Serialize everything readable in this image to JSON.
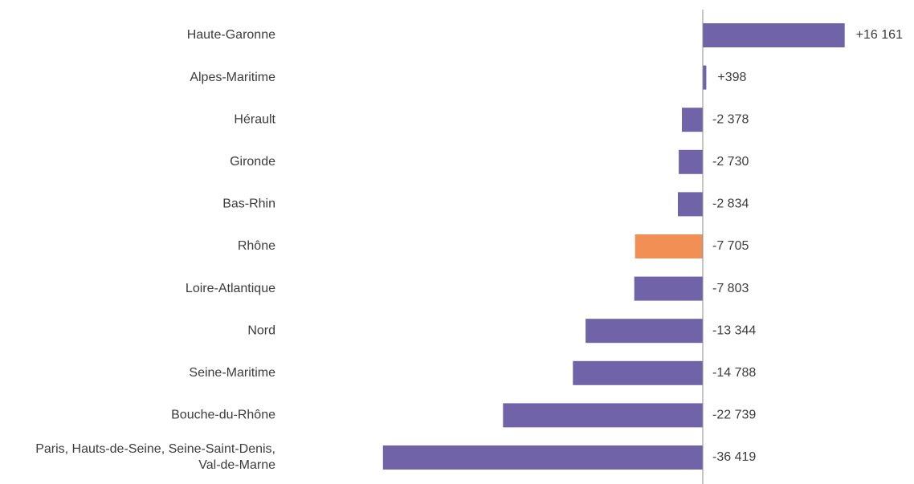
{
  "chart_data": {
    "type": "bar",
    "orientation": "horizontal",
    "title": "",
    "xlabel": "",
    "ylabel": "",
    "grid": false,
    "categories": [
      [
        "Haute-Garonne"
      ],
      [
        "Alpes-Maritime"
      ],
      [
        "Hérault"
      ],
      [
        "Gironde"
      ],
      [
        "Bas-Rhin"
      ],
      [
        "Rhône"
      ],
      [
        "Loire-Atlantique"
      ],
      [
        "Nord"
      ],
      [
        "Seine-Maritime"
      ],
      [
        "Bouche-du-Rhône"
      ],
      [
        "Paris, Hauts-de-Seine, Seine-Saint-Denis,",
        "Val-de-Marne"
      ]
    ],
    "values": [
      16161,
      398,
      -2378,
      -2730,
      -2834,
      -7705,
      -7803,
      -13344,
      -14788,
      -22739,
      -36419
    ],
    "value_labels": [
      "+16 161",
      "+398",
      "-2 378",
      "-2 730",
      "-2 834",
      "-7 705",
      "-7 803",
      "-13 344",
      "-14 788",
      "-22 739",
      "-36 419"
    ],
    "colors": {
      "default": "#7063a8",
      "highlight": "#f28f55",
      "axis": "#8c8c8c"
    },
    "highlight_index": 5
  }
}
